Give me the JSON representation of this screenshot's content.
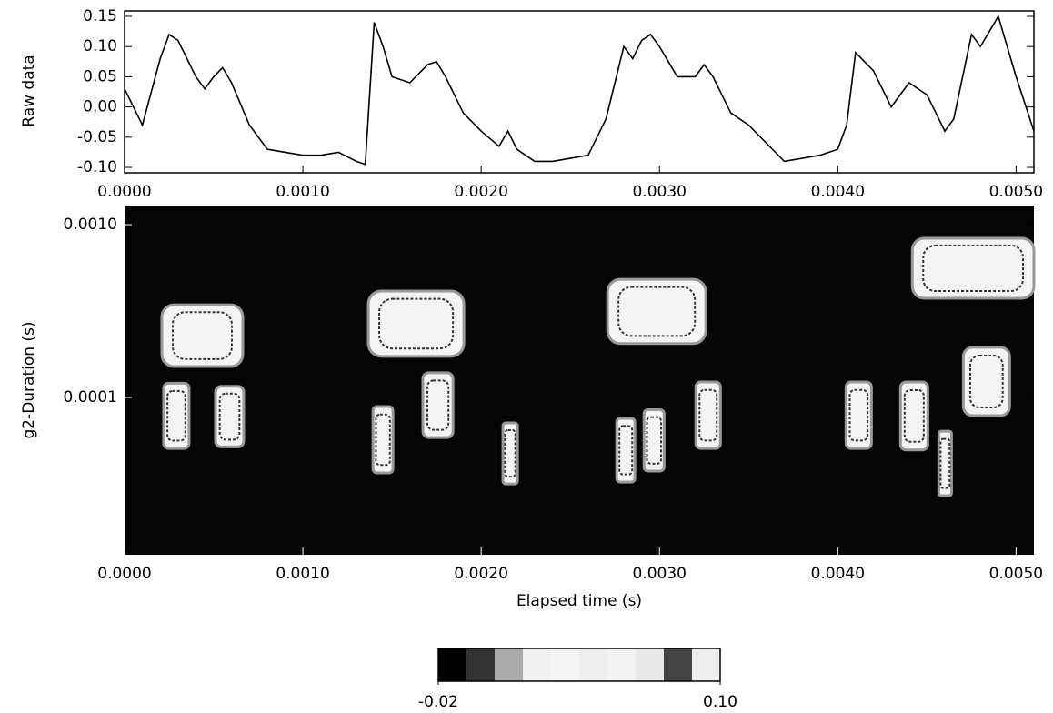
{
  "chart_data": [
    {
      "type": "line",
      "ylabel": "Raw data",
      "color": "#000000",
      "x": [
        0,
        0.0001,
        0.0002,
        0.00025,
        0.0003,
        0.0004,
        0.00045,
        0.0005,
        0.00055,
        0.0006,
        0.0007,
        0.0008,
        0.0009,
        0.001,
        0.0011,
        0.0012,
        0.0013,
        0.00135,
        0.0014,
        0.00145,
        0.0015,
        0.0016,
        0.0017,
        0.00175,
        0.0018,
        0.0019,
        0.002,
        0.0021,
        0.00215,
        0.0022,
        0.0023,
        0.0024,
        0.0025,
        0.0026,
        0.0027,
        0.0028,
        0.00285,
        0.0029,
        0.00295,
        0.003,
        0.0031,
        0.0032,
        0.00325,
        0.0033,
        0.0034,
        0.0035,
        0.0036,
        0.0037,
        0.0038,
        0.0039,
        0.004,
        0.00405,
        0.0041,
        0.0042,
        0.0043,
        0.0044,
        0.0045,
        0.0046,
        0.00465,
        0.0047,
        0.00475,
        0.0048,
        0.0049,
        0.005,
        0.0051
      ],
      "values": [
        0.03,
        -0.03,
        0.08,
        0.12,
        0.11,
        0.05,
        0.03,
        0.05,
        0.065,
        0.04,
        -0.03,
        -0.07,
        -0.075,
        -0.08,
        -0.08,
        -0.075,
        -0.09,
        -0.095,
        0.14,
        0.1,
        0.05,
        0.04,
        0.07,
        0.075,
        0.05,
        -0.01,
        -0.04,
        -0.065,
        -0.04,
        -0.07,
        -0.09,
        -0.09,
        -0.085,
        -0.08,
        -0.02,
        0.1,
        0.08,
        0.11,
        0.12,
        0.1,
        0.05,
        0.05,
        0.07,
        0.05,
        -0.01,
        -0.03,
        -0.06,
        -0.09,
        -0.085,
        -0.08,
        -0.07,
        -0.03,
        0.09,
        0.06,
        0.0,
        0.04,
        0.02,
        -0.04,
        -0.02,
        0.05,
        0.12,
        0.1,
        0.15,
        0.05,
        -0.04
      ],
      "xlim": [
        0,
        0.0051
      ],
      "ylim": [
        -0.109,
        0.159
      ],
      "xticks": [
        {
          "value": 0,
          "label": "0.0000"
        },
        {
          "value": 0.001,
          "label": "0.0010"
        },
        {
          "value": 0.002,
          "label": "0.0020"
        },
        {
          "value": 0.003,
          "label": "0.0030"
        },
        {
          "value": 0.004,
          "label": "0.0040"
        },
        {
          "value": 0.005,
          "label": "0.0050"
        }
      ],
      "yticks": [
        0.15,
        {
          "value": 0.1,
          "label": "0.10"
        },
        0.05,
        {
          "value": 0,
          "label": "0.00"
        },
        -0.05,
        {
          "value": -0.1,
          "label": "-0.10"
        }
      ]
    },
    {
      "type": "heatmap",
      "xlabel": "Elapsed time (s)",
      "ylabel": "g2-Duration (s)",
      "log_y": true,
      "xlim": [
        0,
        0.0051
      ],
      "ylim": [
        1.23e-05,
        0.00129
      ],
      "xticks": [
        {
          "value": 0,
          "label": "0.0000"
        },
        {
          "value": 0.001,
          "label": "0.0010"
        },
        {
          "value": 0.002,
          "label": "0.0020"
        },
        {
          "value": 0.003,
          "label": "0.0030"
        },
        {
          "value": 0.004,
          "label": "0.0040"
        },
        {
          "value": 0.005,
          "label": "0.0050"
        }
      ],
      "yticks": [
        {
          "value": 0.001,
          "label": "0.0010"
        },
        {
          "value": 0.0001,
          "label": "0.0001"
        }
      ],
      "blobs": [
        {
          "x": [
            0.000209,
            0.000663
          ],
          "y": [
            0.000151,
            0.000344
          ]
        },
        {
          "x": [
            0.001367,
            0.001903
          ],
          "y": [
            0.000173,
            0.000413
          ]
        },
        {
          "x": [
            0.002709,
            0.00326
          ],
          "y": [
            0.000205,
            0.000483
          ]
        },
        {
          "x": [
            0.004418,
            0.0051
          ],
          "y": [
            0.000375,
            0.000834
          ]
        },
        {
          "x": [
            0.000219,
            0.000362
          ],
          "y": [
            5.07e-05,
            0.000121
          ]
        },
        {
          "x": [
            0.00051,
            0.000668
          ],
          "y": [
            5.18e-05,
            0.000116
          ]
        },
        {
          "x": [
            0.001393,
            0.001505
          ],
          "y": [
            3.66e-05,
            8.86e-05
          ]
        },
        {
          "x": [
            0.001673,
            0.001842
          ],
          "y": [
            5.86e-05,
            0.000139
          ]
        },
        {
          "x": [
            0.002122,
            0.002204
          ],
          "y": [
            3.16e-05,
            7.13e-05
          ]
        },
        {
          "x": [
            0.00276,
            0.002862
          ],
          "y": [
            3.24e-05,
            7.57e-05
          ]
        },
        {
          "x": [
            0.002913,
            0.003026
          ],
          "y": [
            3.75e-05,
            8.5e-05
          ]
        },
        {
          "x": [
            0.003204,
            0.003342
          ],
          "y": [
            5.07e-05,
            0.000123
          ]
        },
        {
          "x": [
            0.004046,
            0.004189
          ],
          "y": [
            5.07e-05,
            0.000123
          ]
        },
        {
          "x": [
            0.004352,
            0.004505
          ],
          "y": [
            4.97e-05,
            0.000123
          ]
        },
        {
          "x": [
            0.004704,
            0.004964
          ],
          "y": [
            7.85e-05,
            0.000195
          ]
        },
        {
          "x": [
            0.004566,
            0.004638
          ],
          "y": [
            2.7e-05,
            6.38e-05
          ]
        }
      ],
      "colorbar": {
        "lim": [
          -0.02,
          0.1
        ],
        "ticks": [
          -0.02,
          {
            "value": 0.1,
            "label": "0.10"
          }
        ],
        "colors": [
          "#000000",
          "#333333",
          "#aaaaaa",
          "#f0f0f0",
          "#f4f4f4",
          "#eeeeee",
          "#f2f2f2",
          "#e8e8e8",
          "#444444",
          "#eeeeee"
        ]
      }
    }
  ]
}
